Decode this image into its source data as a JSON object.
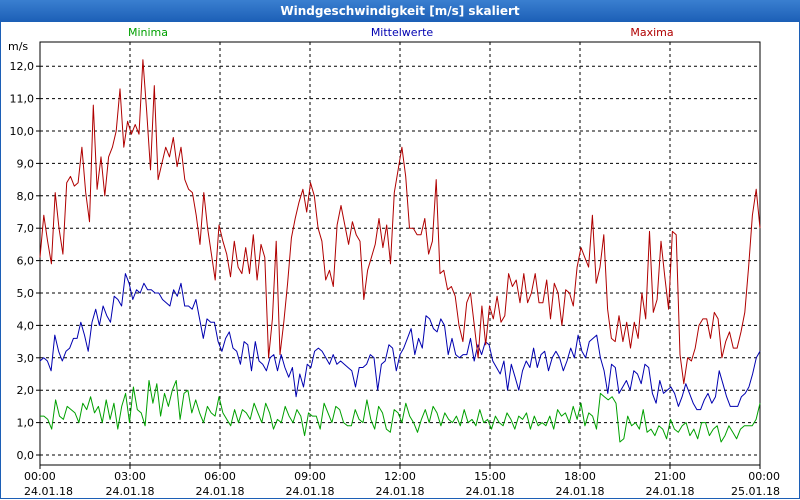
{
  "chart_data": {
    "type": "line",
    "title": "Windgeschwindigkeit [m/s] skaliert",
    "ylabel": "m/s",
    "ylim": [
      0,
      12.5
    ],
    "yticks": [
      "0,0",
      "1,0",
      "2,0",
      "3,0",
      "4,0",
      "5,0",
      "6,0",
      "7,0",
      "8,0",
      "9,0",
      "10,0",
      "11,0",
      "12,0"
    ],
    "xlim_hours": [
      0,
      24
    ],
    "xticks": [
      {
        "time": "00:00",
        "date": "24.01.18"
      },
      {
        "time": "03:00",
        "date": "24.01.18"
      },
      {
        "time": "06:00",
        "date": "24.01.18"
      },
      {
        "time": "09:00",
        "date": "24.01.18"
      },
      {
        "time": "12:00",
        "date": "24.01.18"
      },
      {
        "time": "15:00",
        "date": "24.01.18"
      },
      {
        "time": "18:00",
        "date": "24.01.18"
      },
      {
        "time": "21:00",
        "date": "24.01.18"
      },
      {
        "time": "00:00",
        "date": "25.01.18"
      }
    ],
    "grid": true,
    "series": [
      {
        "name": "Minima",
        "color": "#00a000",
        "values": [
          1.2,
          1.2,
          1.1,
          0.8,
          1.7,
          1.2,
          1.1,
          1.5,
          1.4,
          1.3,
          1.0,
          1.6,
          1.4,
          1.8,
          1.3,
          1.5,
          1.0,
          1.7,
          1.1,
          1.6,
          0.8,
          1.5,
          1.9,
          1.0,
          2.1,
          1.4,
          1.3,
          0.9,
          2.3,
          1.6,
          2.2,
          1.2,
          1.9,
          1.5,
          2.0,
          2.3,
          1.1,
          1.9,
          2.0,
          1.3,
          1.7,
          1.3,
          1.0,
          1.5,
          1.3,
          1.2,
          1.8,
          1.3,
          1.1,
          0.9,
          1.4,
          1.0,
          1.4,
          1.3,
          1.1,
          1.6,
          1.3,
          1.0,
          1.6,
          1.3,
          0.8,
          1.1,
          1.0,
          1.5,
          1.2,
          1.0,
          1.4,
          1.2,
          0.6,
          1.3,
          1.2,
          1.2,
          0.8,
          1.6,
          1.3,
          1.0,
          1.5,
          1.4,
          1.0,
          0.9,
          0.9,
          1.4,
          1.1,
          1.0,
          1.7,
          1.1,
          0.8,
          1.5,
          1.3,
          0.8,
          0.7,
          1.4,
          1.3,
          1.0,
          1.6,
          1.2,
          1.0,
          0.7,
          1.1,
          1.4,
          1.0,
          1.5,
          1.3,
          0.9,
          1.3,
          1.1,
          1.0,
          1.2,
          0.9,
          1.4,
          1.0,
          1.1,
          0.9,
          1.4,
          1.0,
          1.1,
          0.8,
          1.2,
          1.0,
          0.9,
          1.3,
          1.1,
          0.8,
          1.2,
          1.1,
          1.3,
          0.8,
          1.2,
          0.9,
          1.0,
          0.9,
          1.2,
          0.8,
          1.4,
          1.2,
          1.3,
          1.0,
          1.5,
          1.1,
          1.6,
          0.9,
          1.3,
          1.2,
          0.8,
          1.9,
          1.8,
          1.7,
          1.8,
          1.6,
          0.4,
          0.5,
          1.2,
          0.9,
          1.0,
          0.8,
          1.4,
          0.7,
          0.8,
          0.6,
          0.9,
          0.8,
          0.5,
          1.1,
          0.8,
          0.7,
          0.9,
          1.0,
          0.6,
          0.8,
          0.5,
          1.0,
          1.0,
          0.6,
          0.8,
          0.9,
          0.4,
          0.6,
          0.9,
          0.7,
          0.5,
          0.8,
          0.9,
          0.9,
          0.9,
          1.1,
          1.6
        ]
      },
      {
        "name": "Mittelwerte",
        "color": "#0000b0",
        "values": [
          2.9,
          3.0,
          2.9,
          2.6,
          3.7,
          3.2,
          2.9,
          3.2,
          3.3,
          3.6,
          3.6,
          4.1,
          3.7,
          3.2,
          4.1,
          4.5,
          4.0,
          4.6,
          4.3,
          4.1,
          4.9,
          4.8,
          4.6,
          5.6,
          5.3,
          4.8,
          5.1,
          5.0,
          5.3,
          5.1,
          5.1,
          5.0,
          5.0,
          4.8,
          4.7,
          4.6,
          5.1,
          4.9,
          5.3,
          4.6,
          4.6,
          4.5,
          4.8,
          4.2,
          3.6,
          4.2,
          4.1,
          4.1,
          3.5,
          3.2,
          3.6,
          3.8,
          3.3,
          3.2,
          2.8,
          3.5,
          3.4,
          2.6,
          3.5,
          2.9,
          2.8,
          2.6,
          3.0,
          3.1,
          2.6,
          3.1,
          2.7,
          2.4,
          2.7,
          1.8,
          2.5,
          2.1,
          2.8,
          2.7,
          3.2,
          3.3,
          3.2,
          3.0,
          2.8,
          3.1,
          2.8,
          2.9,
          2.8,
          2.7,
          2.6,
          2.1,
          2.7,
          2.7,
          2.8,
          3.1,
          3.0,
          2.0,
          2.8,
          2.9,
          3.4,
          3.3,
          2.6,
          3.1,
          3.3,
          3.6,
          3.9,
          3.1,
          3.6,
          3.3,
          4.3,
          4.2,
          3.9,
          3.8,
          4.2,
          4.0,
          3.1,
          3.6,
          3.1,
          3.0,
          3.1,
          3.1,
          3.6,
          2.9,
          3.4,
          3.1,
          3.5,
          3.4,
          2.9,
          2.7,
          2.5,
          2.9,
          2.0,
          2.8,
          2.4,
          2.0,
          2.6,
          2.9,
          2.7,
          3.3,
          2.7,
          3.1,
          3.2,
          2.6,
          3.0,
          3.2,
          3.0,
          2.6,
          2.9,
          3.3,
          3.0,
          3.7,
          3.2,
          3.0,
          3.5,
          3.6,
          3.7,
          3.0,
          2.6,
          1.9,
          2.8,
          2.7,
          1.9,
          2.1,
          2.3,
          2.0,
          2.6,
          2.5,
          2.2,
          2.8,
          2.7,
          1.9,
          1.6,
          2.3,
          1.9,
          2.0,
          2.1,
          1.9,
          1.5,
          1.8,
          2.2,
          1.9,
          1.6,
          1.4,
          1.4,
          1.7,
          1.9,
          1.6,
          1.8,
          2.6,
          2.2,
          1.8,
          1.5,
          1.5,
          1.5,
          1.8,
          1.9,
          2.1,
          2.5,
          3.0,
          3.2
        ]
      },
      {
        "name": "Maxima",
        "color": "#b00000",
        "values": [
          6.1,
          7.4,
          6.6,
          5.9,
          8.1,
          7.0,
          6.2,
          8.4,
          8.6,
          8.3,
          8.4,
          9.5,
          8.1,
          7.2,
          10.8,
          8.2,
          9.2,
          8.0,
          9.2,
          9.5,
          10.0,
          11.3,
          9.5,
          10.3,
          9.9,
          10.2,
          9.9,
          12.2,
          10.6,
          8.8,
          11.4,
          8.5,
          9.0,
          9.5,
          9.2,
          9.8,
          8.9,
          9.5,
          8.5,
          8.2,
          8.1,
          7.4,
          6.5,
          8.1,
          7.0,
          6.2,
          5.4,
          7.1,
          6.6,
          6.2,
          5.5,
          6.6,
          5.8,
          5.6,
          6.4,
          5.6,
          6.8,
          5.4,
          6.5,
          6.1,
          3.0,
          4.2,
          6.6,
          3.1,
          4.1,
          5.3,
          6.7,
          7.3,
          7.8,
          8.2,
          7.5,
          8.4,
          8.0,
          7.0,
          6.6,
          5.4,
          5.7,
          5.2,
          7.1,
          7.7,
          7.1,
          6.5,
          7.2,
          6.8,
          6.6,
          4.8,
          5.7,
          6.1,
          6.5,
          7.3,
          6.4,
          7.1,
          5.9,
          8.1,
          8.8,
          9.5,
          8.6,
          7.0,
          7.0,
          6.8,
          6.8,
          7.3,
          6.2,
          6.6,
          8.5,
          5.6,
          5.7,
          5.1,
          5.2,
          4.9,
          4.0,
          3.5,
          4.7,
          5.0,
          4.0,
          3.0,
          4.6,
          3.4,
          4.6,
          4.2,
          4.9,
          4.1,
          4.3,
          5.6,
          5.2,
          5.4,
          4.7,
          5.6,
          4.7,
          5.0,
          5.6,
          4.7,
          4.7,
          5.4,
          4.2,
          5.3,
          5.0,
          4.0,
          5.1,
          5.0,
          4.6,
          5.8,
          6.4,
          6.1,
          5.8,
          7.4,
          5.3,
          5.8,
          6.8,
          4.5,
          3.6,
          3.5,
          4.3,
          3.5,
          4.1,
          3.3,
          4.1,
          3.6,
          5.0,
          4.2,
          6.9,
          4.4,
          4.8,
          6.6,
          5.5,
          4.5,
          6.9,
          6.8,
          3.1,
          2.2,
          3.0,
          2.9,
          3.3,
          4.0,
          4.2,
          4.2,
          3.6,
          4.4,
          4.2,
          3.0,
          3.5,
          3.8,
          3.3,
          3.3,
          3.8,
          4.4,
          5.8,
          7.4,
          8.2,
          7.0
        ]
      }
    ]
  }
}
